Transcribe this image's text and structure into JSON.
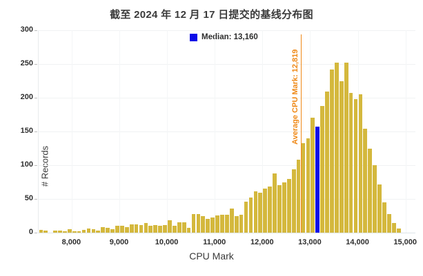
{
  "title": "截至 2024 年 12 月 17 日提交的基线分布图",
  "legend": {
    "label": "Median: 13,160",
    "swatch_color": "#0b0be8"
  },
  "annotation": {
    "label": "Average CPU Mark: 12,819",
    "value": 12819,
    "color": "#ef8816"
  },
  "chart_data": {
    "type": "bar",
    "title": "截至 2024 年 12 月 17 日提交的基线分布图",
    "xlabel": "CPU Mark",
    "ylabel": "# Records",
    "xlim": [
      7300,
      15200
    ],
    "ylim": [
      0,
      300
    ],
    "grid": true,
    "legend_position": "top-center",
    "x_ticks": [
      {
        "value": 8000,
        "label": "8,000"
      },
      {
        "value": 9000,
        "label": "9,000"
      },
      {
        "value": 10000,
        "label": "10,000"
      },
      {
        "value": 11000,
        "label": "11,000"
      },
      {
        "value": 12000,
        "label": "12,000"
      },
      {
        "value": 13000,
        "label": "13,000"
      },
      {
        "value": 14000,
        "label": "14,000"
      },
      {
        "value": 15000,
        "label": "15,000"
      }
    ],
    "y_ticks": [
      0,
      50,
      100,
      150,
      200,
      250,
      300
    ],
    "bin_start": 7300,
    "bin_size": 100,
    "counts": [
      4,
      3,
      0,
      3,
      3,
      2,
      5,
      2,
      2,
      4,
      6,
      5,
      3,
      8,
      7,
      5,
      10,
      10,
      8,
      12,
      12,
      11,
      14,
      10,
      11,
      10,
      11,
      18,
      10,
      15,
      15,
      7,
      28,
      28,
      24,
      20,
      22,
      26,
      27,
      27,
      36,
      25,
      27,
      46,
      52,
      61,
      59,
      65,
      68,
      88,
      70,
      74,
      80,
      94,
      108,
      133,
      140,
      170,
      157,
      188,
      209,
      242,
      252,
      225,
      252,
      207,
      198,
      205,
      154,
      125,
      100,
      71,
      45,
      28,
      14,
      6
    ],
    "bar_color": "#d4b83d",
    "median_bin_start": 13100,
    "median_value": 13160,
    "median_color": "#0b0be8",
    "average_value": 12819
  }
}
